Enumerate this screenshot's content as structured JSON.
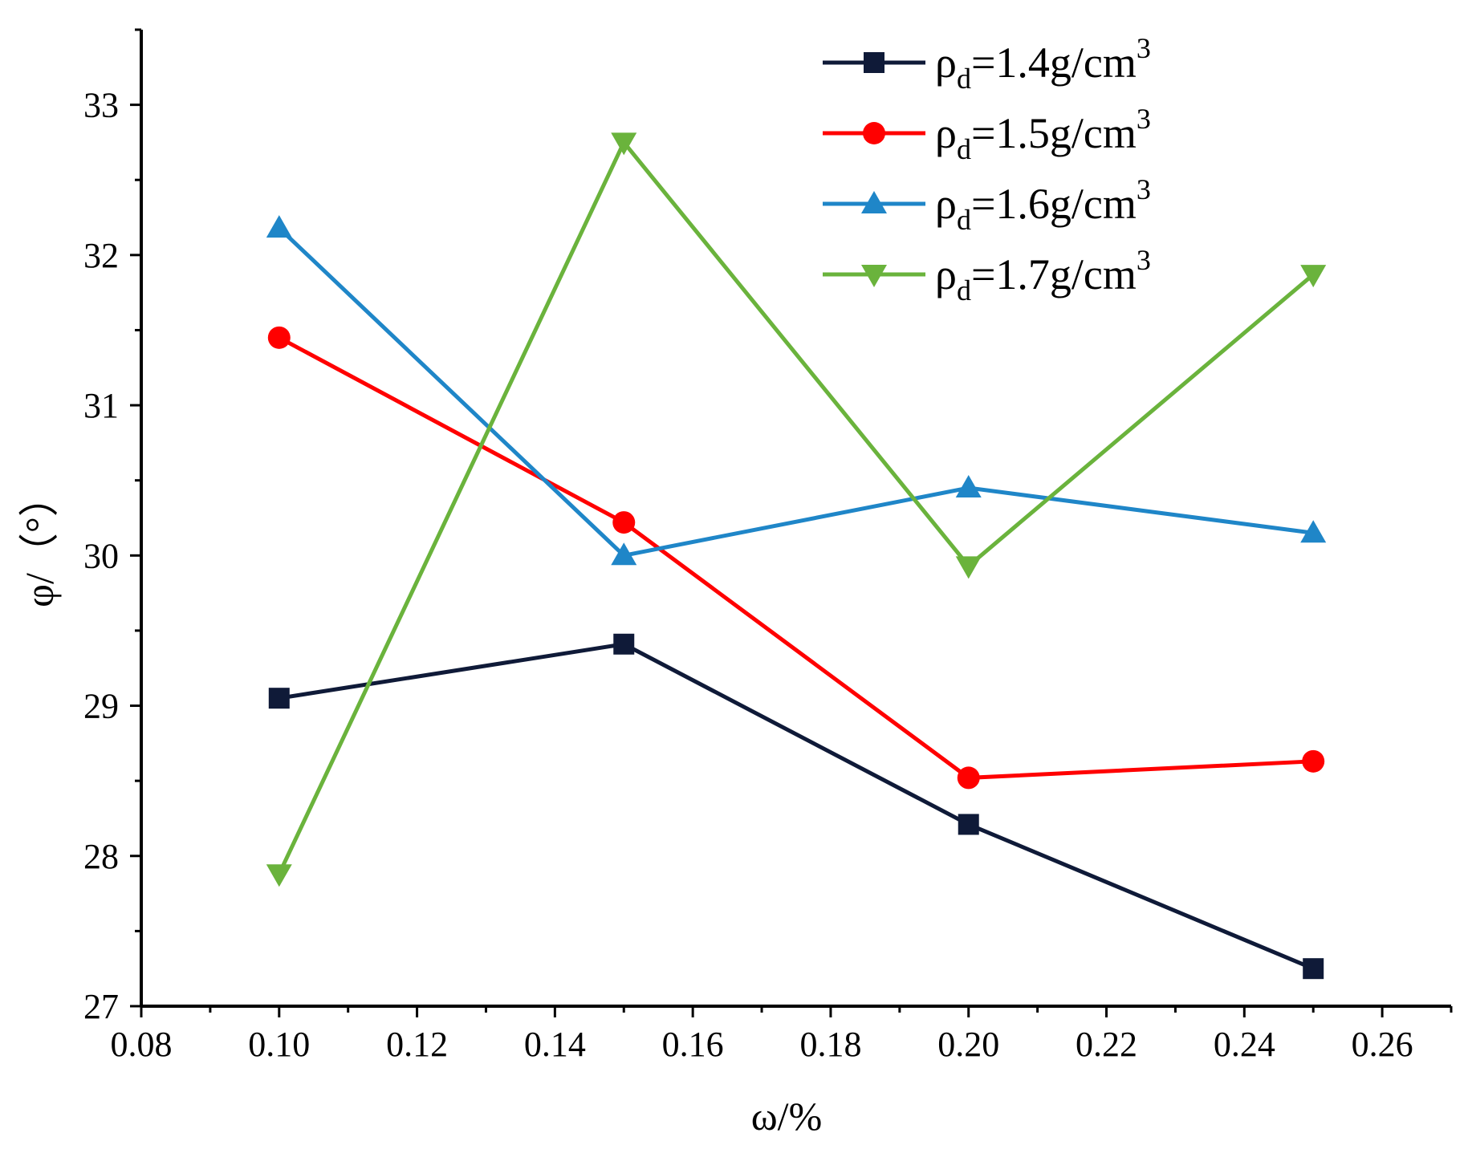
{
  "chart_data": {
    "type": "line",
    "title": "",
    "xlabel": "ω/%",
    "ylabel": "φ/（°）",
    "xlim": [
      0.08,
      0.27
    ],
    "ylim": [
      27,
      33.5
    ],
    "x_ticks": [
      0.08,
      0.1,
      0.12,
      0.14,
      0.16,
      0.18,
      0.2,
      0.22,
      0.24,
      0.26
    ],
    "x_tick_labels": [
      "0.08",
      "0.10",
      "0.12",
      "0.14",
      "0.16",
      "0.18",
      "0.20",
      "0.22",
      "0.24",
      "0.26"
    ],
    "y_ticks": [
      27,
      28,
      29,
      30,
      31,
      32,
      33
    ],
    "y_tick_labels": [
      "27",
      "28",
      "29",
      "30",
      "31",
      "32",
      "33"
    ],
    "x_minor_step": 0.01,
    "y_minor_step": 0.5,
    "grid": false,
    "legend_position": "top-right",
    "x": [
      0.1,
      0.15,
      0.2,
      0.25
    ],
    "series": [
      {
        "name": "ρd=1.4g/cm3",
        "label_base": "ρ",
        "label_sub": "d",
        "label_main": "=1.4g/cm",
        "label_sup": "3",
        "color": "#0f1a38",
        "marker": "square",
        "values": [
          29.05,
          29.41,
          28.21,
          27.25
        ]
      },
      {
        "name": "ρd=1.5g/cm3",
        "label_base": "ρ",
        "label_sub": "d",
        "label_main": "=1.5g/cm",
        "label_sup": "3",
        "color": "#ff0000",
        "marker": "circle",
        "values": [
          31.45,
          30.22,
          28.52,
          28.63
        ]
      },
      {
        "name": "ρd=1.6g/cm3",
        "label_base": "ρ",
        "label_sub": "d",
        "label_main": "=1.6g/cm",
        "label_sup": "3",
        "color": "#1f86c8",
        "marker": "triangle-up",
        "values": [
          32.18,
          30.0,
          30.45,
          30.15
        ]
      },
      {
        "name": "ρd=1.7g/cm3",
        "label_base": "ρ",
        "label_sub": "d",
        "label_main": "=1.7g/cm",
        "label_sup": "3",
        "color": "#6ab33c",
        "marker": "triangle-down",
        "values": [
          27.88,
          32.75,
          29.93,
          31.87
        ]
      }
    ]
  }
}
